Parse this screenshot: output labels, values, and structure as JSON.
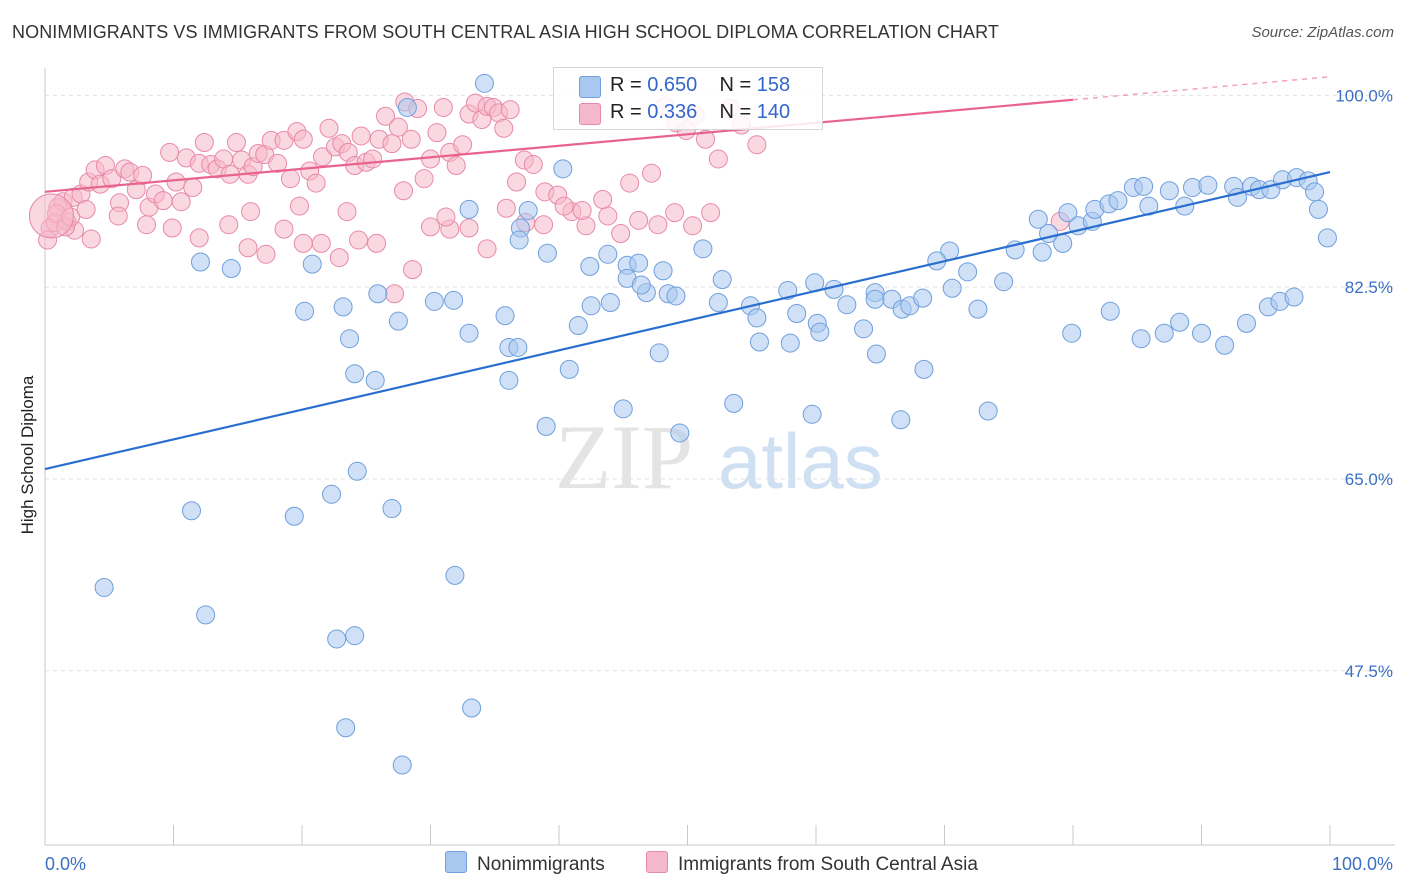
{
  "title": "NONIMMIGRANTS VS IMMIGRANTS FROM SOUTH CENTRAL ASIA HIGH SCHOOL DIPLOMA CORRELATION CHART",
  "source": "Source: ZipAtlas.com",
  "watermark": {
    "zip": "ZIP",
    "atlas": "atlas"
  },
  "legend": {
    "blue": {
      "r_label": "R = ",
      "r_value": "0.650",
      "n_label": "N = ",
      "n_value": "158"
    },
    "pink": {
      "r_label": "R = ",
      "r_value": "0.336",
      "n_label": "N = ",
      "n_value": "140"
    }
  },
  "bottom_legend": {
    "blue": "Nonimmigrants",
    "pink": "Immigrants from South Central Asia"
  },
  "colors": {
    "blue_fill": "#a9c8f0",
    "blue_stroke": "#6f9fdc",
    "blue_line": "#2a6fcf",
    "pink_fill": "#f5b8cb",
    "pink_stroke": "#e889a8",
    "pink_line": "#e8648e",
    "tick_label": "#3a6fc4",
    "grid": "#e2e2e2"
  },
  "chart_data": {
    "type": "scatter",
    "title": "NONIMMIGRANTS VS IMMIGRANTS FROM SOUTH CENTRAL ASIA HIGH SCHOOL DIPLOMA CORRELATION CHART",
    "xlabel": "",
    "ylabel": "High School Diploma",
    "xlim": [
      0,
      100
    ],
    "ylim": [
      31.6,
      102.5
    ],
    "x_tick_labels": [
      "0.0%",
      "100.0%"
    ],
    "y_ticks": [
      47.5,
      65.0,
      82.5,
      100.0
    ],
    "y_tick_labels": [
      "47.5%",
      "65.0%",
      "82.5%",
      "100.0%"
    ],
    "grid": true,
    "legend_position": "top-center",
    "series": [
      {
        "name": "Nonimmigrants",
        "color": "blue",
        "trend": {
          "x": [
            0,
            100
          ],
          "y": [
            65.9,
            93.0
          ]
        },
        "points": [
          [
            34.2,
            101.1
          ],
          [
            28.2,
            98.9
          ],
          [
            40.3,
            93.3
          ],
          [
            37.6,
            89.5
          ],
          [
            33.0,
            89.6
          ],
          [
            37.0,
            87.9
          ],
          [
            36.9,
            86.8
          ],
          [
            39.1,
            85.6
          ],
          [
            42.4,
            84.4
          ],
          [
            43.8,
            85.5
          ],
          [
            45.3,
            84.5
          ],
          [
            46.2,
            84.7
          ],
          [
            46.8,
            82.0
          ],
          [
            48.1,
            84.0
          ],
          [
            51.2,
            86.0
          ],
          [
            20.8,
            84.6
          ],
          [
            12.1,
            84.8
          ],
          [
            23.7,
            77.8
          ],
          [
            20.2,
            80.3
          ],
          [
            25.9,
            81.9
          ],
          [
            23.2,
            80.7
          ],
          [
            27.5,
            79.4
          ],
          [
            30.3,
            81.2
          ],
          [
            31.8,
            81.3
          ],
          [
            35.8,
            79.9
          ],
          [
            33.0,
            78.3
          ],
          [
            36.1,
            77.0
          ],
          [
            36.8,
            77.0
          ],
          [
            40.8,
            75.0
          ],
          [
            42.5,
            80.8
          ],
          [
            41.5,
            79.0
          ],
          [
            44.0,
            81.1
          ],
          [
            45.3,
            83.3
          ],
          [
            46.4,
            82.7
          ],
          [
            48.5,
            81.9
          ],
          [
            49.1,
            81.7
          ],
          [
            52.7,
            83.2
          ],
          [
            52.4,
            81.1
          ],
          [
            54.9,
            80.8
          ],
          [
            55.4,
            79.7
          ],
          [
            57.8,
            82.2
          ],
          [
            58.5,
            80.1
          ],
          [
            59.9,
            82.9
          ],
          [
            60.1,
            79.2
          ],
          [
            60.3,
            78.4
          ],
          [
            61.4,
            82.3
          ],
          [
            62.4,
            80.9
          ],
          [
            64.6,
            82.0
          ],
          [
            63.7,
            78.7
          ],
          [
            64.6,
            81.4
          ],
          [
            65.9,
            81.4
          ],
          [
            66.7,
            80.5
          ],
          [
            67.3,
            80.8
          ],
          [
            68.3,
            81.5
          ],
          [
            70.4,
            85.8
          ],
          [
            69.4,
            84.9
          ],
          [
            70.6,
            82.4
          ],
          [
            71.8,
            83.9
          ],
          [
            72.6,
            80.5
          ],
          [
            74.6,
            83.0
          ],
          [
            75.5,
            85.9
          ],
          [
            77.6,
            85.7
          ],
          [
            78.1,
            87.4
          ],
          [
            77.3,
            88.7
          ],
          [
            79.2,
            86.5
          ],
          [
            79.6,
            89.3
          ],
          [
            80.4,
            88.1
          ],
          [
            81.5,
            88.5
          ],
          [
            81.7,
            89.6
          ],
          [
            82.8,
            90.1
          ],
          [
            83.5,
            90.4
          ],
          [
            84.7,
            91.6
          ],
          [
            85.5,
            91.7
          ],
          [
            85.9,
            89.9
          ],
          [
            87.5,
            91.3
          ],
          [
            88.7,
            89.9
          ],
          [
            89.3,
            91.6
          ],
          [
            90.5,
            91.8
          ],
          [
            92.5,
            91.7
          ],
          [
            92.8,
            90.7
          ],
          [
            93.9,
            91.7
          ],
          [
            94.5,
            91.4
          ],
          [
            95.4,
            91.4
          ],
          [
            96.3,
            92.3
          ],
          [
            97.4,
            92.5
          ],
          [
            98.3,
            92.2
          ],
          [
            98.8,
            91.2
          ],
          [
            99.1,
            89.6
          ],
          [
            99.8,
            87.0
          ],
          [
            14.5,
            84.2
          ],
          [
            25.7,
            74.0
          ],
          [
            24.1,
            74.6
          ],
          [
            36.1,
            74.0
          ],
          [
            47.8,
            76.5
          ],
          [
            39.0,
            69.8
          ],
          [
            45.0,
            71.4
          ],
          [
            49.4,
            69.2
          ],
          [
            53.6,
            71.9
          ],
          [
            59.7,
            70.9
          ],
          [
            55.6,
            77.5
          ],
          [
            58.0,
            77.4
          ],
          [
            64.7,
            76.4
          ],
          [
            68.4,
            75.0
          ],
          [
            66.6,
            70.4
          ],
          [
            73.4,
            71.2
          ],
          [
            79.9,
            78.3
          ],
          [
            82.9,
            80.3
          ],
          [
            85.3,
            77.8
          ],
          [
            87.1,
            78.3
          ],
          [
            88.3,
            79.3
          ],
          [
            90.0,
            78.3
          ],
          [
            91.8,
            77.2
          ],
          [
            93.5,
            79.2
          ],
          [
            95.2,
            80.7
          ],
          [
            96.1,
            81.2
          ],
          [
            97.2,
            81.6
          ],
          [
            11.4,
            62.1
          ],
          [
            22.3,
            63.6
          ],
          [
            24.3,
            65.7
          ],
          [
            31.9,
            56.2
          ],
          [
            27.0,
            62.3
          ],
          [
            19.4,
            61.6
          ],
          [
            4.6,
            55.1
          ],
          [
            12.5,
            52.6
          ],
          [
            22.7,
            50.4
          ],
          [
            24.1,
            50.7
          ],
          [
            33.2,
            44.1
          ],
          [
            23.4,
            42.3
          ],
          [
            27.8,
            38.9
          ]
        ]
      },
      {
        "name": "Immigrants from South Central Asia",
        "color": "pink",
        "trend": {
          "x": [
            0,
            80
          ],
          "y": [
            91.2,
            99.6
          ]
        },
        "trend_dashed": {
          "x": [
            80,
            100
          ],
          "y": [
            99.6,
            101.7
          ]
        },
        "points": [
          [
            0.4,
            87.9
          ],
          [
            0.8,
            88.4
          ],
          [
            1.0,
            89.8
          ],
          [
            1.4,
            90.3
          ],
          [
            1.7,
            88.5
          ],
          [
            2.2,
            90.7
          ],
          [
            2.8,
            91.0
          ],
          [
            3.4,
            92.1
          ],
          [
            3.9,
            93.2
          ],
          [
            4.3,
            91.9
          ],
          [
            4.7,
            93.6
          ],
          [
            5.2,
            92.4
          ],
          [
            5.8,
            90.2
          ],
          [
            6.2,
            93.3
          ],
          [
            6.6,
            93.0
          ],
          [
            7.1,
            91.4
          ],
          [
            7.6,
            92.7
          ],
          [
            8.1,
            89.8
          ],
          [
            8.6,
            91.0
          ],
          [
            9.2,
            90.4
          ],
          [
            9.7,
            94.8
          ],
          [
            10.2,
            92.1
          ],
          [
            10.6,
            90.3
          ],
          [
            11.0,
            94.3
          ],
          [
            11.5,
            91.6
          ],
          [
            12.0,
            93.8
          ],
          [
            12.4,
            95.7
          ],
          [
            12.9,
            93.7
          ],
          [
            13.4,
            93.3
          ],
          [
            13.9,
            94.2
          ],
          [
            14.4,
            92.8
          ],
          [
            14.9,
            95.7
          ],
          [
            15.3,
            94.1
          ],
          [
            15.8,
            92.8
          ],
          [
            16.2,
            93.5
          ],
          [
            16.6,
            94.7
          ],
          [
            17.1,
            94.6
          ],
          [
            17.6,
            95.9
          ],
          [
            18.1,
            93.8
          ],
          [
            18.6,
            95.9
          ],
          [
            19.1,
            92.4
          ],
          [
            19.6,
            96.7
          ],
          [
            20.1,
            96.0
          ],
          [
            20.6,
            93.1
          ],
          [
            21.1,
            92.0
          ],
          [
            21.6,
            94.4
          ],
          [
            22.1,
            97.0
          ],
          [
            22.6,
            95.3
          ],
          [
            23.1,
            95.6
          ],
          [
            23.6,
            94.8
          ],
          [
            24.1,
            93.6
          ],
          [
            24.6,
            96.3
          ],
          [
            25.0,
            93.9
          ],
          [
            25.5,
            94.2
          ],
          [
            26.0,
            96.0
          ],
          [
            26.5,
            98.1
          ],
          [
            27.0,
            95.6
          ],
          [
            27.5,
            97.1
          ],
          [
            28.0,
            99.4
          ],
          [
            28.5,
            96.0
          ],
          [
            29.0,
            98.8
          ],
          [
            29.5,
            92.4
          ],
          [
            30.0,
            94.2
          ],
          [
            30.5,
            96.6
          ],
          [
            31.0,
            98.9
          ],
          [
            31.5,
            94.8
          ],
          [
            32.0,
            93.6
          ],
          [
            32.5,
            95.5
          ],
          [
            33.0,
            98.3
          ],
          [
            33.5,
            99.3
          ],
          [
            34.0,
            97.8
          ],
          [
            34.4,
            99.0
          ],
          [
            34.9,
            98.9
          ],
          [
            35.3,
            98.4
          ],
          [
            35.7,
            97.0
          ],
          [
            36.2,
            98.7
          ],
          [
            36.7,
            92.1
          ],
          [
            37.3,
            94.1
          ],
          [
            38.0,
            93.7
          ],
          [
            38.9,
            91.2
          ],
          [
            39.9,
            90.9
          ],
          [
            41.0,
            89.4
          ],
          [
            42.1,
            88.1
          ],
          [
            43.8,
            89.0
          ],
          [
            45.5,
            92.0
          ],
          [
            47.2,
            92.9
          ],
          [
            48.2,
            99.0
          ],
          [
            49.1,
            97.5
          ],
          [
            49.9,
            96.8
          ],
          [
            50.6,
            98.2
          ],
          [
            51.4,
            96.0
          ],
          [
            52.4,
            94.2
          ],
          [
            53.3,
            98.8
          ],
          [
            54.2,
            97.3
          ],
          [
            55.4,
            95.5
          ],
          [
            12.0,
            87.0
          ],
          [
            14.3,
            88.2
          ],
          [
            15.8,
            86.1
          ],
          [
            17.2,
            85.5
          ],
          [
            18.6,
            87.8
          ],
          [
            20.1,
            86.5
          ],
          [
            21.5,
            86.5
          ],
          [
            22.9,
            85.2
          ],
          [
            24.4,
            86.8
          ],
          [
            25.8,
            86.5
          ],
          [
            27.2,
            81.9
          ],
          [
            28.6,
            84.1
          ],
          [
            30.0,
            88.0
          ],
          [
            31.5,
            87.8
          ],
          [
            33.0,
            87.9
          ],
          [
            34.4,
            86.0
          ],
          [
            35.9,
            89.7
          ],
          [
            37.4,
            88.4
          ],
          [
            38.8,
            88.2
          ],
          [
            40.4,
            89.9
          ],
          [
            41.8,
            89.5
          ],
          [
            43.4,
            90.5
          ],
          [
            44.8,
            87.4
          ],
          [
            46.2,
            88.6
          ],
          [
            47.7,
            88.2
          ],
          [
            49.0,
            89.3
          ],
          [
            50.4,
            88.1
          ],
          [
            51.8,
            89.3
          ],
          [
            79.0,
            88.5
          ],
          [
            0.2,
            86.8
          ],
          [
            2.3,
            87.7
          ],
          [
            3.6,
            86.9
          ],
          [
            5.7,
            89.0
          ],
          [
            7.9,
            88.2
          ],
          [
            9.9,
            87.9
          ],
          [
            16.0,
            89.4
          ],
          [
            19.8,
            89.9
          ],
          [
            23.5,
            89.4
          ],
          [
            27.9,
            91.3
          ],
          [
            31.2,
            88.9
          ],
          [
            0.9,
            89.2
          ],
          [
            1.6,
            88.0
          ],
          [
            2.0,
            88.9
          ],
          [
            3.2,
            89.6
          ],
          [
            0.5,
            89.0
          ]
        ]
      }
    ]
  }
}
